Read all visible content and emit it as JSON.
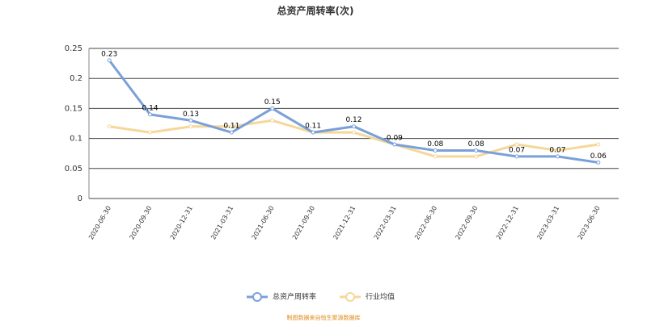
{
  "chart_data": {
    "type": "line",
    "title": "总资产周转率(次)",
    "categories": [
      "2020-06-30",
      "2020-09-30",
      "2020-12-31",
      "2021-03-31",
      "2021-06-30",
      "2021-09-30",
      "2021-12-31",
      "2022-03-31",
      "2022-06-30",
      "2022-09-30",
      "2022-12-31",
      "2023-03-31",
      "2023-06-30"
    ],
    "series": [
      {
        "name": "总资产周转率",
        "color": "#7aa0d8",
        "values": [
          0.23,
          0.14,
          0.13,
          0.11,
          0.15,
          0.11,
          0.12,
          0.09,
          0.08,
          0.08,
          0.07,
          0.07,
          0.06
        ],
        "labels": true
      },
      {
        "name": "行业均值",
        "color": "#f5d79a",
        "values": [
          0.12,
          0.11,
          0.12,
          0.12,
          0.13,
          0.11,
          0.11,
          0.09,
          0.07,
          0.07,
          0.09,
          0.08,
          0.09
        ],
        "labels": false
      }
    ],
    "ylim": [
      0,
      0.25
    ],
    "yticks": [
      0,
      0.05,
      0.1,
      0.15,
      0.2,
      0.25
    ],
    "grid": true,
    "legend": "bottom",
    "source": "制图数据来自恒生聚源数据库"
  }
}
